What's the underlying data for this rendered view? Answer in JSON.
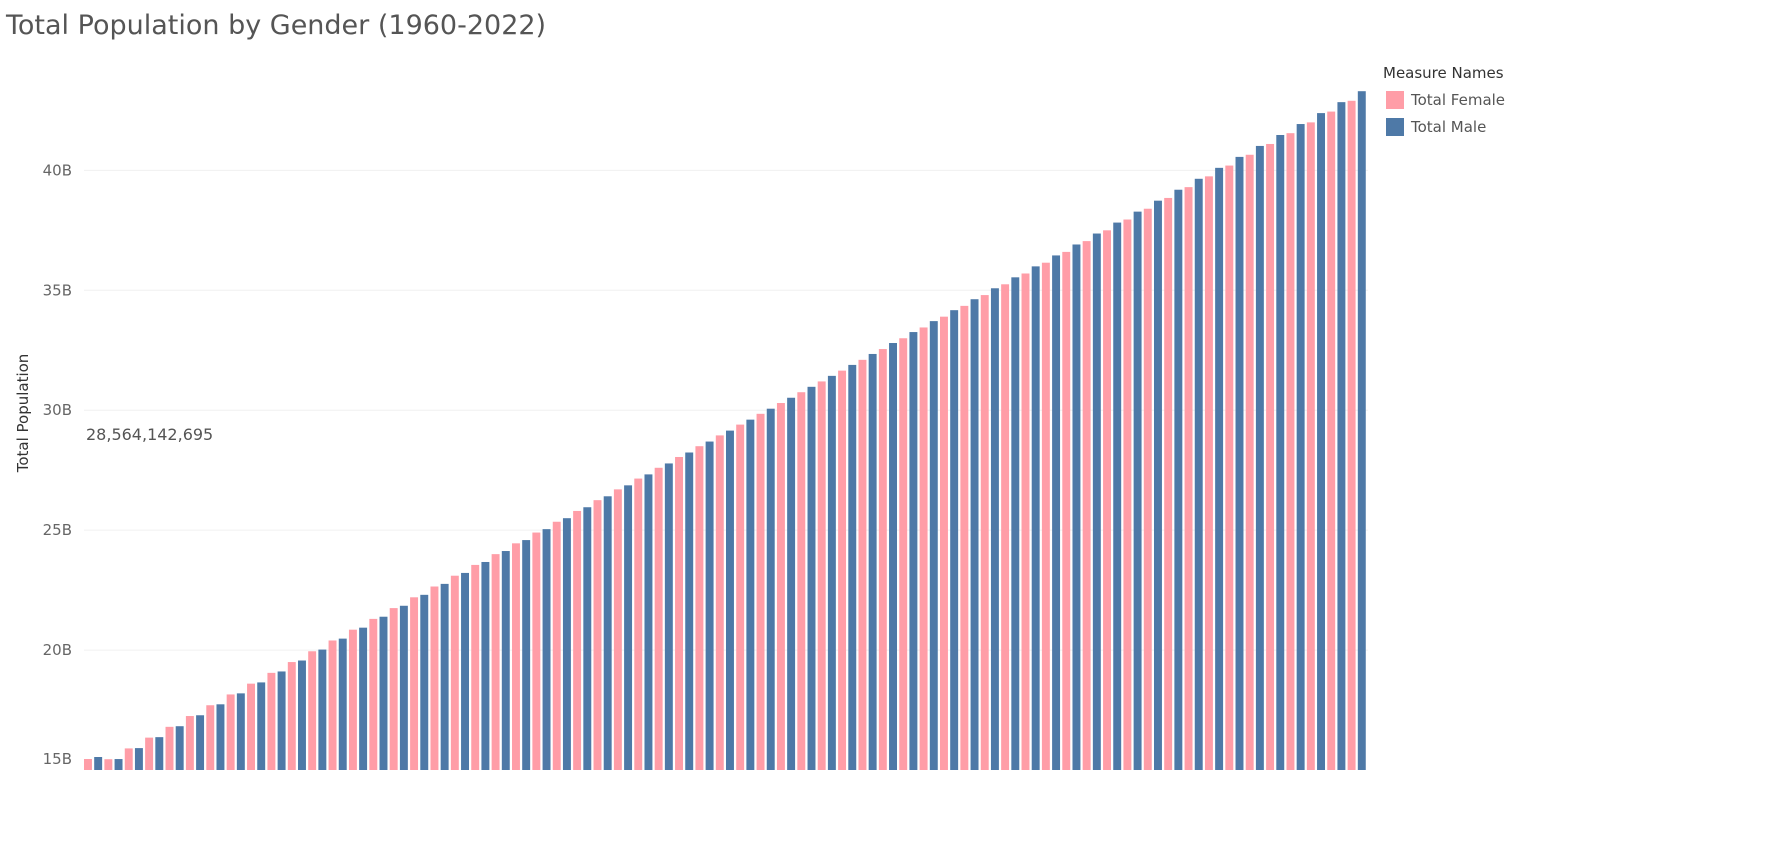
{
  "chart_data": {
    "type": "bar",
    "title": "Total Population by Gender (1960-2022)",
    "xlabel": "",
    "ylabel": "Total Population",
    "ylim": [
      15000000000,
      43350000000
    ],
    "yticks": [
      15000000000,
      20000000000,
      25000000000,
      30000000000,
      35000000000,
      40000000000
    ],
    "ytick_labels": [
      "15B",
      "20B",
      "25B",
      "30B",
      "35B",
      "40B"
    ],
    "grid": true,
    "legend": {
      "title": "Measure Names",
      "placement": "top-right"
    },
    "annotation": "28,564,142,695",
    "series": [
      {
        "name": "Total Female",
        "color": "#FF9DA7",
        "start": 15000000000,
        "end": 42900000000,
        "count": 63
      },
      {
        "name": "Total Male",
        "color": "#4E79A7",
        "start": 15000000000,
        "end": 43300000000,
        "count": 63
      }
    ]
  }
}
